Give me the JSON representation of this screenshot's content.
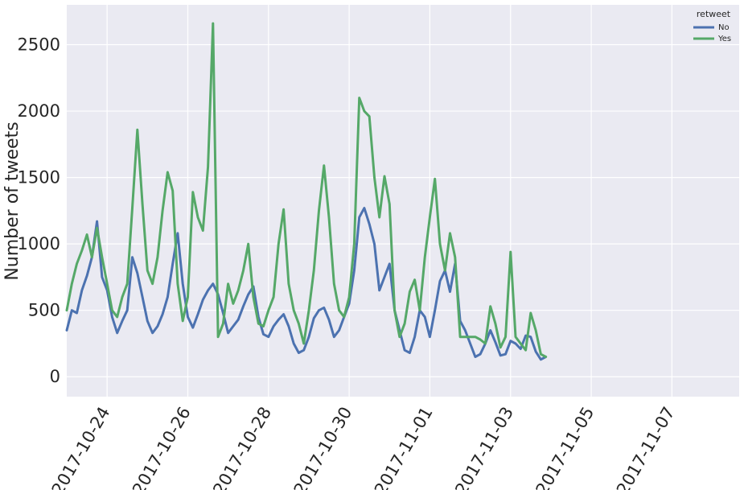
{
  "chart_data": {
    "type": "line",
    "title": "",
    "xlabel": "",
    "ylabel": "Number of tweets",
    "x_range": [
      "2017-10-23T00:00",
      "2017-11-08T16:00"
    ],
    "ylim": [
      -150,
      2800
    ],
    "y_ticks": [
      0,
      500,
      1000,
      1500,
      2000,
      2500
    ],
    "x_ticks": [
      "2017-10-24",
      "2017-10-26",
      "2017-10-28",
      "2017-10-30",
      "2017-11-01",
      "2017-11-03",
      "2017-11-05",
      "2017-11-07"
    ],
    "grid": true,
    "legend": {
      "title": "retweet",
      "placement": "top-right"
    },
    "series": [
      {
        "name": "No",
        "color": "#4c72b0",
        "points": [
          [
            "2017-10-23T00:00",
            350
          ],
          [
            "2017-10-23T03:00",
            500
          ],
          [
            "2017-10-23T06:00",
            480
          ],
          [
            "2017-10-23T09:00",
            650
          ],
          [
            "2017-10-23T12:00",
            760
          ],
          [
            "2017-10-23T15:00",
            900
          ],
          [
            "2017-10-23T18:00",
            1170
          ],
          [
            "2017-10-23T21:00",
            750
          ],
          [
            "2017-10-24T00:00",
            650
          ],
          [
            "2017-10-24T03:00",
            450
          ],
          [
            "2017-10-24T06:00",
            330
          ],
          [
            "2017-10-24T09:00",
            420
          ],
          [
            "2017-10-24T12:00",
            500
          ],
          [
            "2017-10-24T15:00",
            900
          ],
          [
            "2017-10-24T18:00",
            780
          ],
          [
            "2017-10-24T21:00",
            600
          ],
          [
            "2017-10-25T00:00",
            420
          ],
          [
            "2017-10-25T03:00",
            330
          ],
          [
            "2017-10-25T06:00",
            380
          ],
          [
            "2017-10-25T09:00",
            470
          ],
          [
            "2017-10-25T12:00",
            600
          ],
          [
            "2017-10-25T15:00",
            850
          ],
          [
            "2017-10-25T18:00",
            1080
          ],
          [
            "2017-10-25T21:00",
            700
          ],
          [
            "2017-10-26T00:00",
            450
          ],
          [
            "2017-10-26T03:00",
            370
          ],
          [
            "2017-10-26T06:00",
            470
          ],
          [
            "2017-10-26T09:00",
            580
          ],
          [
            "2017-10-26T12:00",
            650
          ],
          [
            "2017-10-26T15:00",
            700
          ],
          [
            "2017-10-26T18:00",
            620
          ],
          [
            "2017-10-26T21:00",
            480
          ],
          [
            "2017-10-27T00:00",
            330
          ],
          [
            "2017-10-27T03:00",
            380
          ],
          [
            "2017-10-27T06:00",
            430
          ],
          [
            "2017-10-27T09:00",
            530
          ],
          [
            "2017-10-27T12:00",
            620
          ],
          [
            "2017-10-27T15:00",
            680
          ],
          [
            "2017-10-27T18:00",
            450
          ],
          [
            "2017-10-27T21:00",
            320
          ],
          [
            "2017-10-28T00:00",
            300
          ],
          [
            "2017-10-28T03:00",
            380
          ],
          [
            "2017-10-28T06:00",
            430
          ],
          [
            "2017-10-28T09:00",
            470
          ],
          [
            "2017-10-28T12:00",
            380
          ],
          [
            "2017-10-28T15:00",
            250
          ],
          [
            "2017-10-28T18:00",
            180
          ],
          [
            "2017-10-28T21:00",
            200
          ],
          [
            "2017-10-29T00:00",
            300
          ],
          [
            "2017-10-29T03:00",
            440
          ],
          [
            "2017-10-29T06:00",
            500
          ],
          [
            "2017-10-29T09:00",
            520
          ],
          [
            "2017-10-29T12:00",
            430
          ],
          [
            "2017-10-29T15:00",
            300
          ],
          [
            "2017-10-29T18:00",
            350
          ],
          [
            "2017-10-29T21:00",
            450
          ],
          [
            "2017-10-30T00:00",
            550
          ],
          [
            "2017-10-30T03:00",
            800
          ],
          [
            "2017-10-30T06:00",
            1200
          ],
          [
            "2017-10-30T09:00",
            1270
          ],
          [
            "2017-10-30T12:00",
            1150
          ],
          [
            "2017-10-30T15:00",
            1000
          ],
          [
            "2017-10-30T18:00",
            650
          ],
          [
            "2017-10-30T21:00",
            750
          ],
          [
            "2017-10-31T00:00",
            850
          ],
          [
            "2017-10-31T03:00",
            500
          ],
          [
            "2017-10-31T06:00",
            350
          ],
          [
            "2017-10-31T09:00",
            200
          ],
          [
            "2017-10-31T12:00",
            180
          ],
          [
            "2017-10-31T15:00",
            300
          ],
          [
            "2017-10-31T18:00",
            500
          ],
          [
            "2017-10-31T21:00",
            450
          ],
          [
            "2017-11-01T00:00",
            300
          ],
          [
            "2017-11-01T03:00",
            500
          ],
          [
            "2017-11-01T06:00",
            720
          ],
          [
            "2017-11-01T09:00",
            800
          ],
          [
            "2017-11-01T12:00",
            640
          ],
          [
            "2017-11-01T15:00",
            850
          ],
          [
            "2017-11-01T18:00",
            420
          ],
          [
            "2017-11-01T21:00",
            350
          ],
          [
            "2017-11-02T00:00",
            250
          ],
          [
            "2017-11-02T03:00",
            150
          ],
          [
            "2017-11-02T06:00",
            170
          ],
          [
            "2017-11-02T09:00",
            250
          ],
          [
            "2017-11-02T12:00",
            350
          ],
          [
            "2017-11-02T15:00",
            260
          ],
          [
            "2017-11-02T18:00",
            160
          ],
          [
            "2017-11-02T21:00",
            170
          ],
          [
            "2017-11-03T00:00",
            270
          ],
          [
            "2017-11-03T03:00",
            250
          ],
          [
            "2017-11-03T06:00",
            210
          ],
          [
            "2017-11-03T09:00",
            310
          ],
          [
            "2017-11-03T12:00",
            300
          ],
          [
            "2017-11-03T15:00",
            190
          ],
          [
            "2017-11-03T18:00",
            130
          ],
          [
            "2017-11-03T21:00",
            150
          ]
        ]
      },
      {
        "name": "Yes",
        "color": "#55a868",
        "points": [
          [
            "2017-10-23T00:00",
            500
          ],
          [
            "2017-10-23T03:00",
            700
          ],
          [
            "2017-10-23T06:00",
            850
          ],
          [
            "2017-10-23T09:00",
            950
          ],
          [
            "2017-10-23T12:00",
            1070
          ],
          [
            "2017-10-23T15:00",
            900
          ],
          [
            "2017-10-23T18:00",
            1120
          ],
          [
            "2017-10-23T21:00",
            900
          ],
          [
            "2017-10-24T00:00",
            700
          ],
          [
            "2017-10-24T03:00",
            500
          ],
          [
            "2017-10-24T06:00",
            450
          ],
          [
            "2017-10-24T09:00",
            600
          ],
          [
            "2017-10-24T12:00",
            700
          ],
          [
            "2017-10-24T15:00",
            1270
          ],
          [
            "2017-10-24T18:00",
            1860
          ],
          [
            "2017-10-24T21:00",
            1300
          ],
          [
            "2017-10-25T00:00",
            800
          ],
          [
            "2017-10-25T03:00",
            700
          ],
          [
            "2017-10-25T06:00",
            900
          ],
          [
            "2017-10-25T09:00",
            1250
          ],
          [
            "2017-10-25T12:00",
            1540
          ],
          [
            "2017-10-25T15:00",
            1400
          ],
          [
            "2017-10-25T18:00",
            700
          ],
          [
            "2017-10-25T21:00",
            420
          ],
          [
            "2017-10-26T00:00",
            600
          ],
          [
            "2017-10-26T03:00",
            1390
          ],
          [
            "2017-10-26T06:00",
            1200
          ],
          [
            "2017-10-26T09:00",
            1100
          ],
          [
            "2017-10-26T12:00",
            1580
          ],
          [
            "2017-10-26T15:00",
            2660
          ],
          [
            "2017-10-26T18:00",
            300
          ],
          [
            "2017-10-26T21:00",
            400
          ],
          [
            "2017-10-27T00:00",
            700
          ],
          [
            "2017-10-27T03:00",
            550
          ],
          [
            "2017-10-27T06:00",
            650
          ],
          [
            "2017-10-27T09:00",
            800
          ],
          [
            "2017-10-27T12:00",
            1000
          ],
          [
            "2017-10-27T15:00",
            600
          ],
          [
            "2017-10-27T18:00",
            400
          ],
          [
            "2017-10-27T21:00",
            380
          ],
          [
            "2017-10-28T00:00",
            500
          ],
          [
            "2017-10-28T03:00",
            600
          ],
          [
            "2017-10-28T06:00",
            1000
          ],
          [
            "2017-10-28T09:00",
            1260
          ],
          [
            "2017-10-28T12:00",
            700
          ],
          [
            "2017-10-28T15:00",
            500
          ],
          [
            "2017-10-28T18:00",
            400
          ],
          [
            "2017-10-28T21:00",
            250
          ],
          [
            "2017-10-29T00:00",
            500
          ],
          [
            "2017-10-29T03:00",
            800
          ],
          [
            "2017-10-29T06:00",
            1250
          ],
          [
            "2017-10-29T09:00",
            1590
          ],
          [
            "2017-10-29T12:00",
            1200
          ],
          [
            "2017-10-29T15:00",
            700
          ],
          [
            "2017-10-29T18:00",
            500
          ],
          [
            "2017-10-29T21:00",
            450
          ],
          [
            "2017-10-30T00:00",
            600
          ],
          [
            "2017-10-30T03:00",
            1000
          ],
          [
            "2017-10-30T06:00",
            2100
          ],
          [
            "2017-10-30T09:00",
            2000
          ],
          [
            "2017-10-30T12:00",
            1960
          ],
          [
            "2017-10-30T15:00",
            1500
          ],
          [
            "2017-10-30T18:00",
            1200
          ],
          [
            "2017-10-30T21:00",
            1510
          ],
          [
            "2017-10-31T00:00",
            1300
          ],
          [
            "2017-10-31T03:00",
            500
          ],
          [
            "2017-10-31T06:00",
            300
          ],
          [
            "2017-10-31T09:00",
            400
          ],
          [
            "2017-10-31T12:00",
            640
          ],
          [
            "2017-10-31T15:00",
            730
          ],
          [
            "2017-10-31T18:00",
            500
          ],
          [
            "2017-10-31T21:00",
            900
          ],
          [
            "2017-11-01T00:00",
            1200
          ],
          [
            "2017-11-01T03:00",
            1490
          ],
          [
            "2017-11-01T06:00",
            1000
          ],
          [
            "2017-11-01T09:00",
            800
          ],
          [
            "2017-11-01T12:00",
            1080
          ],
          [
            "2017-11-01T15:00",
            900
          ],
          [
            "2017-11-01T18:00",
            300
          ],
          [
            "2017-11-01T21:00",
            300
          ],
          [
            "2017-11-02T00:00",
            300
          ],
          [
            "2017-11-02T03:00",
            300
          ],
          [
            "2017-11-02T06:00",
            280
          ],
          [
            "2017-11-02T09:00",
            250
          ],
          [
            "2017-11-02T12:00",
            530
          ],
          [
            "2017-11-02T15:00",
            400
          ],
          [
            "2017-11-02T18:00",
            220
          ],
          [
            "2017-11-02T21:00",
            300
          ],
          [
            "2017-11-03T00:00",
            940
          ],
          [
            "2017-11-03T03:00",
            300
          ],
          [
            "2017-11-03T06:00",
            250
          ],
          [
            "2017-11-03T09:00",
            200
          ],
          [
            "2017-11-03T12:00",
            480
          ],
          [
            "2017-11-03T15:00",
            350
          ],
          [
            "2017-11-03T18:00",
            170
          ],
          [
            "2017-11-03T21:00",
            150
          ]
        ]
      }
    ]
  }
}
